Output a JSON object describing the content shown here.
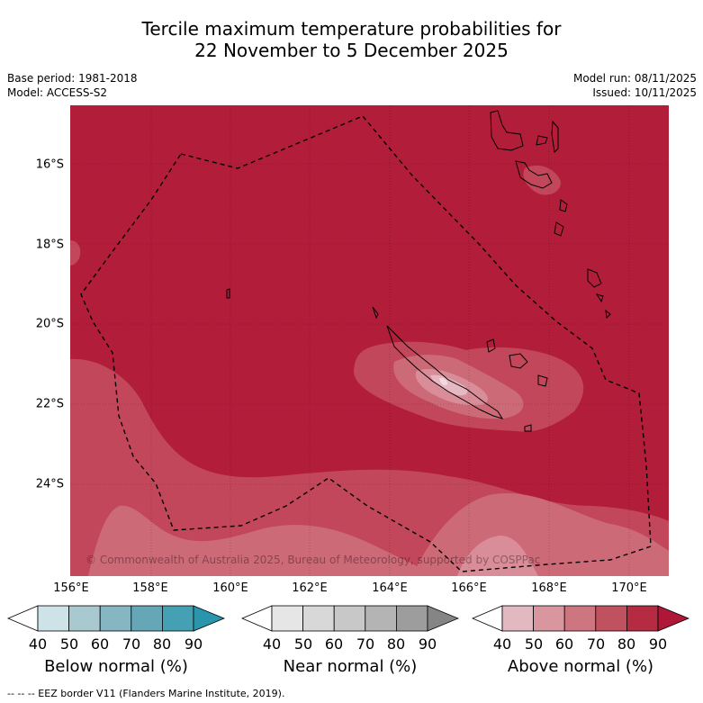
{
  "title": {
    "line1": "Tercile maximum temperature probabilities for",
    "line2": "22 November to 5 December 2025"
  },
  "meta": {
    "base_period": "Base period: 1981-2018",
    "model": "Model: ACCESS-S2",
    "model_run": "Model run: 08/11/2025",
    "issued": "Issued: 10/11/2025"
  },
  "axes": {
    "lat_labels": [
      "16°S",
      "18°S",
      "20°S",
      "22°S",
      "24°S"
    ],
    "lon_labels": [
      "156°E",
      "158°E",
      "160°E",
      "162°E",
      "164°E",
      "166°E",
      "168°E",
      "170°E"
    ]
  },
  "copyright": "© Commonwealth of Australia 2025, Bureau of Meteorology, supported by COSPPac",
  "colorbars": [
    {
      "title": "Below normal (%)",
      "ticks": [
        "40",
        "50",
        "60",
        "70",
        "80",
        "90"
      ],
      "colors": [
        "#ffffff",
        "#cde3e7",
        "#a7c9cf",
        "#86b6c2",
        "#66a7b7",
        "#45a0b3",
        "#2a96ad"
      ]
    },
    {
      "title": "Near normal (%)",
      "ticks": [
        "40",
        "50",
        "60",
        "70",
        "80",
        "90"
      ],
      "colors": [
        "#ffffff",
        "#e6e6e6",
        "#d8d8d8",
        "#c8c8c8",
        "#b4b4b4",
        "#9d9d9d",
        "#858585"
      ]
    },
    {
      "title": "Above normal (%)",
      "ticks": [
        "40",
        "50",
        "60",
        "70",
        "80",
        "90"
      ],
      "colors": [
        "#ffffff",
        "#e2b9c1",
        "#d9969f",
        "#cd7680",
        "#c0515e",
        "#b52b42",
        "#ae1737"
      ]
    }
  ],
  "legend": "--  --  -- EEZ border V11 (Flanders Marine Institute, 2019).",
  "map_colors": {
    "above_80": "#b21d3a",
    "above_70": "#c2475a",
    "above_60": "#cd6a78",
    "above_50": "#d98d99",
    "above_40": "#e6b8c1"
  }
}
